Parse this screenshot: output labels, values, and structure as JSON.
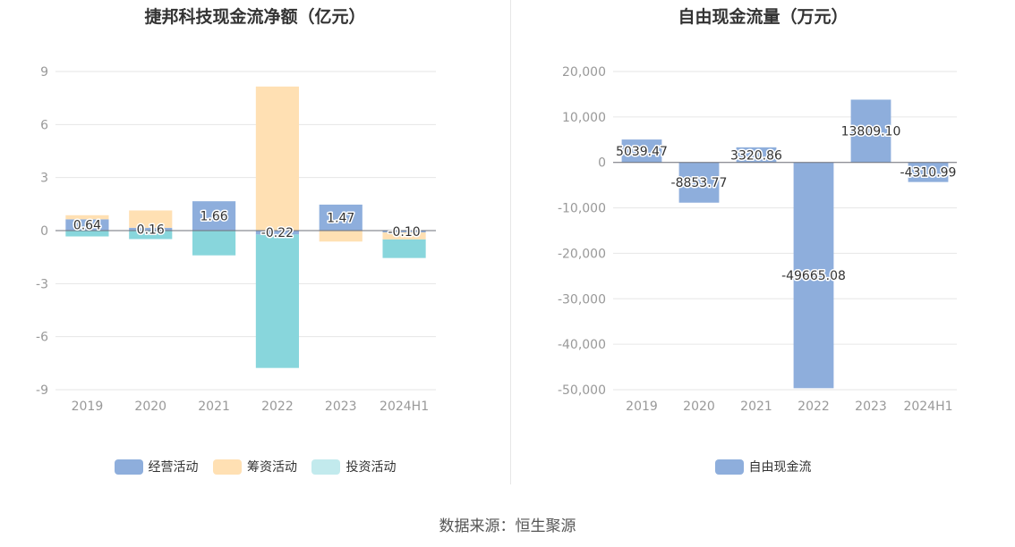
{
  "source": "数据来源：恒生聚源",
  "chart_data": [
    {
      "type": "bar",
      "stacked": true,
      "title": "捷邦科技现金流净额（亿元）",
      "categories": [
        "2019",
        "2020",
        "2021",
        "2022",
        "2023",
        "2024H1"
      ],
      "ylim": [
        -9,
        9
      ],
      "yticks": [
        9,
        6,
        3,
        0,
        -3,
        -6,
        -9
      ],
      "grid": true,
      "legend_position": "bottom",
      "series": [
        {
          "name": "经营活动",
          "color": "#8eaedc",
          "values": [
            0.64,
            0.16,
            1.66,
            -0.22,
            1.47,
            -0.1
          ]
        },
        {
          "name": "筹资活动",
          "color": "#ffe0b3",
          "values": [
            0.23,
            0.98,
            0.0,
            8.15,
            -0.62,
            -0.4
          ]
        },
        {
          "name": "投资活动",
          "color": "#88d6dc",
          "values": [
            -0.33,
            -0.48,
            -1.4,
            -7.55,
            0.0,
            -1.05
          ]
        }
      ],
      "data_labels": [
        "0.64",
        "0.16",
        "1.66",
        "-0.22",
        "1.47",
        "-0.10"
      ],
      "label_series": "经营活动"
    },
    {
      "type": "bar",
      "title": "自由现金流量（万元）",
      "categories": [
        "2019",
        "2020",
        "2021",
        "2022",
        "2023",
        "2024H1"
      ],
      "ylim": [
        -50000,
        20000
      ],
      "yticks": [
        20000,
        10000,
        0,
        -10000,
        -20000,
        -30000,
        -40000,
        -50000
      ],
      "ytick_labels": [
        "20,000",
        "10,000",
        "0",
        "-10,000",
        "-20,000",
        "-30,000",
        "-40,000",
        "-50,000"
      ],
      "grid": true,
      "legend_position": "bottom",
      "series": [
        {
          "name": "自由现金流",
          "color": "#8eaedc",
          "values": [
            5039.47,
            -8853.77,
            3320.86,
            -49665.08,
            13809.1,
            -4310.99
          ]
        }
      ],
      "data_labels": [
        "5039.47",
        "-8853.77",
        "3320.86",
        "-49665.08",
        "13809.10",
        "-4310.99"
      ]
    }
  ]
}
